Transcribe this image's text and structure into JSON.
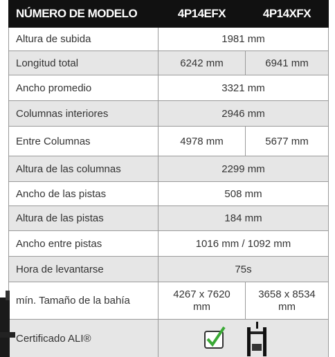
{
  "header": [
    "NÚMERO DE MODELO",
    "4P14EFX",
    "4P14XFX"
  ],
  "rows": [
    [
      "Altura de subida",
      "1981 mm"
    ],
    [
      "Longitud total",
      "6242 mm",
      "6941 mm"
    ],
    [
      "Ancho promedio",
      "3321 mm"
    ],
    [
      "Columnas interiores",
      "2946 mm"
    ],
    [
      "Entre Columnas",
      "4978 mm",
      "5677 mm"
    ],
    [
      "Altura de las columnas",
      "2299 mm"
    ],
    [
      "Ancho de las pistas",
      "508 mm"
    ],
    [
      "Altura de las pistas",
      "184 mm"
    ],
    [
      "Ancho entre pistas",
      "1016 mm / 1092 mm"
    ],
    [
      "Hora de levantarse",
      "75s"
    ],
    [
      "mín. Tamaño de la bahía",
      "4267 x 7620 mm",
      "3658 x 8534 mm"
    ],
    [
      "Certificado ALI®"
    ]
  ]
}
